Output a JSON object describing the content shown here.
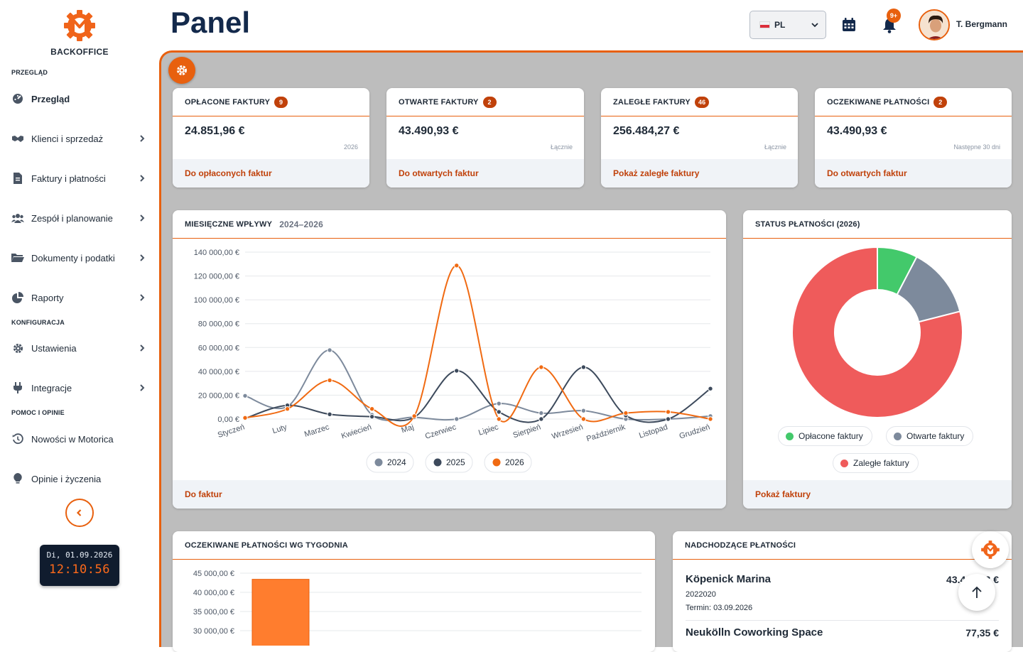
{
  "sidebar": {
    "brand": "BACKOFFICE",
    "sections": [
      {
        "title": "PRZEGLĄD"
      },
      {
        "title": "KONFIGURACJA"
      },
      {
        "title": "POMOC I OPINIE"
      }
    ],
    "items": [
      {
        "label": "Przegląd",
        "icon": "dashboard-icon",
        "active": true
      },
      {
        "label": "Klienci i sprzedaż",
        "icon": "handshake-icon"
      },
      {
        "label": "Faktury i płatności",
        "icon": "invoice-icon"
      },
      {
        "label": "Zespół i planowanie",
        "icon": "team-icon"
      },
      {
        "label": "Dokumenty i podatki",
        "icon": "folder-icon"
      },
      {
        "label": "Raporty",
        "icon": "pie-chart-icon"
      },
      {
        "label": "Ustawienia",
        "icon": "gear-icon"
      },
      {
        "label": "Integracje",
        "icon": "plug-icon"
      },
      {
        "label": "Nowości w Motorica",
        "icon": "history-icon"
      },
      {
        "label": "Opinie i życzenia",
        "icon": "lightbulb-icon"
      }
    ],
    "clock": {
      "date": "Di, 01.09.2026",
      "time": "12:10:56"
    }
  },
  "header": {
    "title": "Panel",
    "language": "PL",
    "notifications_badge": "9+",
    "user_name": "T. Bergmann"
  },
  "kpis": [
    {
      "title": "OPŁACONE FAKTURY",
      "count": "9",
      "value": "24.851,96 €",
      "sub": "2026",
      "link": "Do opłaconych faktur"
    },
    {
      "title": "OTWARTE FAKTURY",
      "count": "2",
      "value": "43.490,93 €",
      "sub": "Łącznie",
      "link": "Do otwartych faktur"
    },
    {
      "title": "ZALEGŁE FAKTURY",
      "count": "46",
      "value": "256.484,27 €",
      "sub": "Łącznie",
      "link": "Pokaż zaległe faktury"
    },
    {
      "title": "OCZEKIWANE PŁATNOŚCI",
      "count": "2",
      "value": "43.490,93 €",
      "sub": "Następne 30 dni",
      "link": "Do otwartych faktur"
    }
  ],
  "monthly": {
    "title": "MIESIĘCZNE WPŁYWY",
    "subtitle": "2024–2026",
    "link": "Do faktur"
  },
  "status": {
    "title": "STATUS PŁATNOŚCI (2026)",
    "link": "Pokaż faktury"
  },
  "weekly": {
    "title": "OCZEKIWANE PŁATNOŚCI WG TYGODNIA"
  },
  "upcoming": {
    "title": "NADCHODZĄCE PŁATNOŚCI",
    "items": [
      {
        "name": "Köpenick Marina",
        "amount": "43.41_,_3 €",
        "number": "2022020",
        "due": "Termin: 03.09.2026"
      },
      {
        "name": "Neukölln Coworking Space",
        "amount": "77,35 €"
      }
    ]
  },
  "colors": {
    "accent": "#e8600e",
    "navy": "#13294b"
  },
  "chart_data": [
    {
      "type": "line",
      "categories": [
        "Styczeń",
        "Luty",
        "Marzec",
        "Kwiecień",
        "Maj",
        "Czerwiec",
        "Lipiec",
        "Sierpień",
        "Wrzesień",
        "Październik",
        "Listopad",
        "Grudzień"
      ],
      "ylim": [
        0,
        140000
      ],
      "yticks": [
        "0,00 €",
        "20 000,00 €",
        "40 000,00 €",
        "60 000,00 €",
        "80 000,00 €",
        "100 000,00 €",
        "120 000,00 €",
        "140 000,00 €"
      ],
      "series": [
        {
          "name": "2024",
          "color": "#7d8a9c",
          "values": [
            19500,
            10500,
            57800,
            3500,
            1500,
            0,
            13000,
            5000,
            7000,
            0,
            0,
            2500
          ]
        },
        {
          "name": "2025",
          "color": "#3d4a5c",
          "values": [
            500,
            11500,
            4000,
            2000,
            1500,
            40500,
            6000,
            0,
            43500,
            3000,
            0,
            25500
          ]
        },
        {
          "name": "2026",
          "color": "#f06a12",
          "values": [
            1000,
            8500,
            32500,
            8500,
            2500,
            128800,
            0,
            43500,
            0,
            5000,
            6000,
            0
          ]
        }
      ],
      "grid": true,
      "legend": "bottom"
    },
    {
      "type": "pie",
      "categories": [
        "Opłacone faktury",
        "Otwarte faktury",
        "Zaległe faktury"
      ],
      "values": [
        24851.96,
        43490.93,
        256484.27
      ],
      "colors": [
        "#43c96b",
        "#7d8a9c",
        "#ef5b5b"
      ],
      "legend": "bottom"
    },
    {
      "type": "bar",
      "yticks": [
        "30 000,00 €",
        "35 000,00 €",
        "40 000,00 €",
        "45 000,00 €"
      ],
      "values": [
        43400
      ],
      "color": "#ff7d2e"
    }
  ]
}
